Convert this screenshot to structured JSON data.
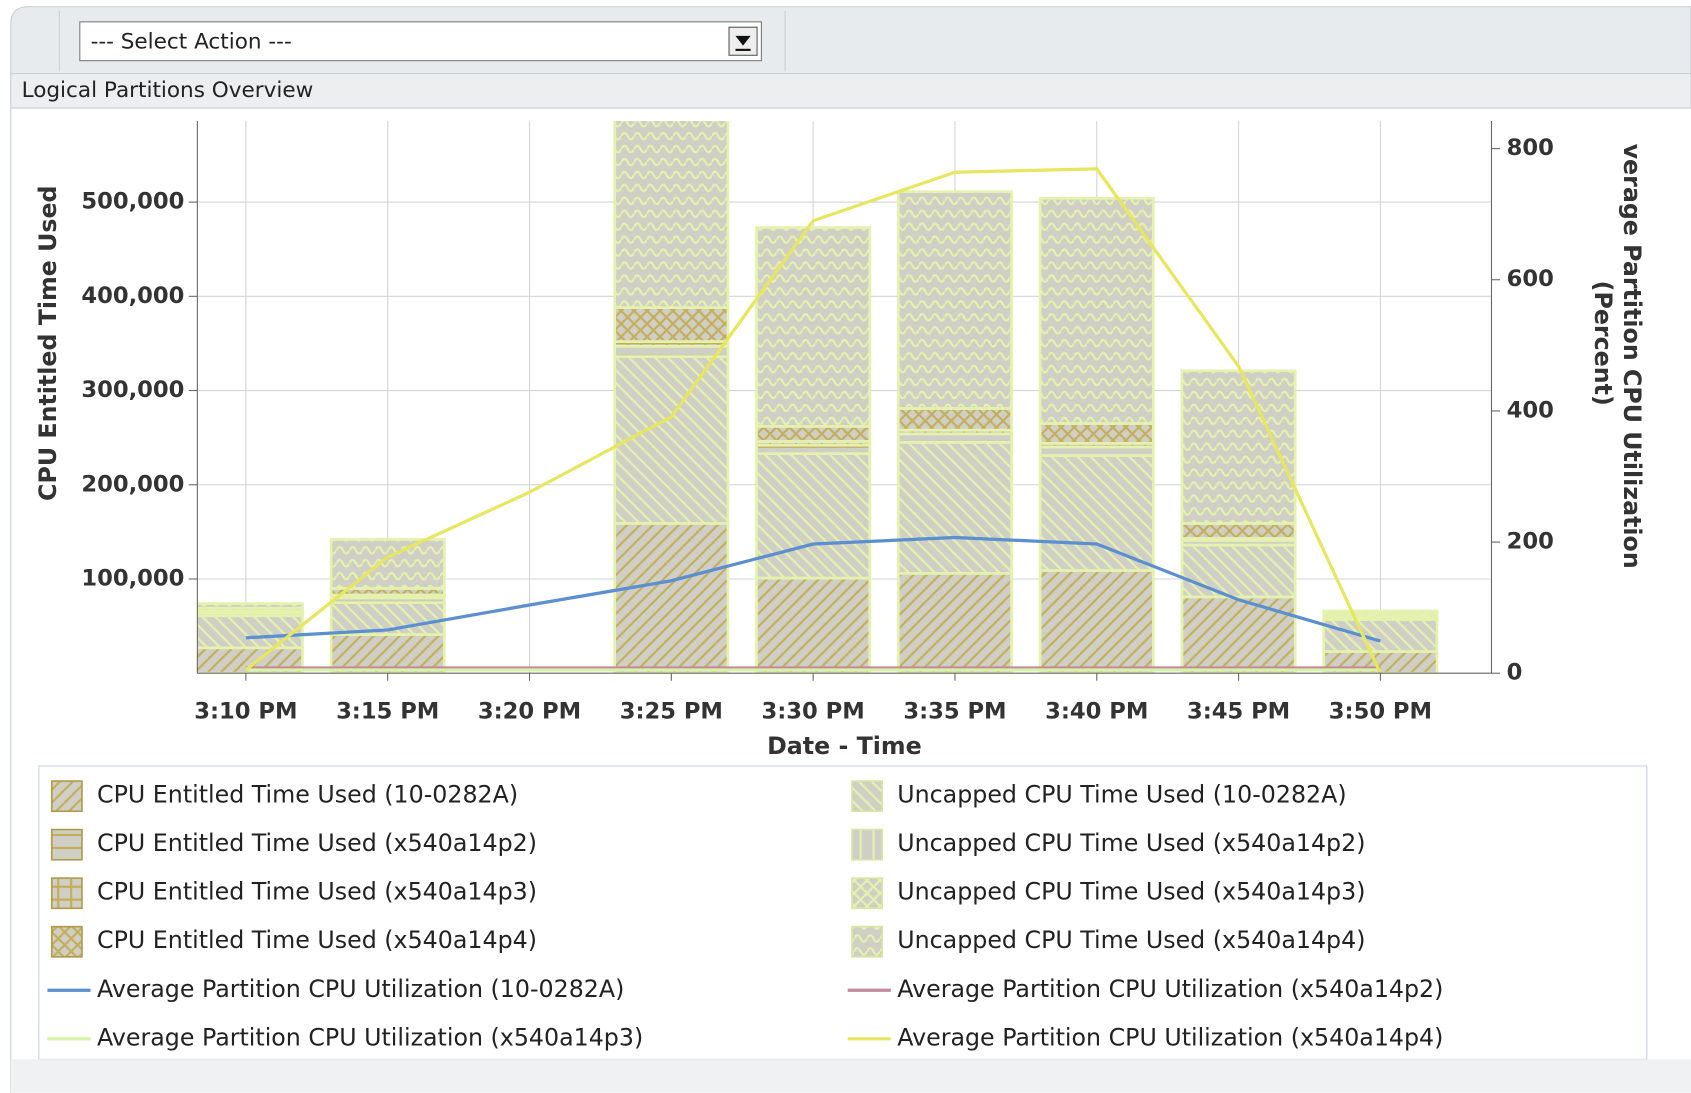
{
  "toolbar": {
    "select": "--- Select Action ---"
  },
  "panel_title": "Logical Partitions Overview",
  "chart_data": {
    "type": "bar",
    "stacked": true,
    "ylabel": "CPU Entitled Time Used",
    "y2label": [
      "verage Partition CPU Utilization",
      "(Percent)"
    ],
    "xlabel": "Date - Time",
    "categories": [
      "3:10 PM",
      "3:15 PM",
      "3:20 PM",
      "3:25 PM",
      "3:30 PM",
      "3:35 PM",
      "3:40 PM",
      "3:45 PM",
      "3:50 PM"
    ],
    "ylim": [
      0,
      586000
    ],
    "yticks": [
      {
        "value": 100000,
        "label": "100,000"
      },
      {
        "value": 200000,
        "label": "200,000"
      },
      {
        "value": 300000,
        "label": "300,000"
      },
      {
        "value": 400000,
        "label": "400,000"
      },
      {
        "value": 500000,
        "label": "500,000"
      }
    ],
    "y2lim": [
      0,
      842
    ],
    "y2ticks": [
      0,
      200,
      400,
      600,
      800
    ],
    "grid": true,
    "series": [
      {
        "name": "CPU Entitled Time Used (10-0282A)",
        "type": "bar",
        "color": "#c4ae5a",
        "pattern": "diag",
        "values": [
          27000,
          41000,
          null,
          159000,
          101000,
          106000,
          109000,
          81000,
          23000
        ]
      },
      {
        "name": "Uncapped CPU Time Used (10-0282A)",
        "type": "bar",
        "color": "#e4f2ae",
        "pattern": "back",
        "values": [
          34000,
          34000,
          null,
          177000,
          132000,
          139000,
          122000,
          55000,
          34000
        ]
      },
      {
        "name": "CPU Entitled Time Used (x540a14p2)",
        "type": "bar",
        "color": "#c4ae5a",
        "pattern": "hline",
        "values": [
          3000,
          5000,
          null,
          11000,
          9000,
          9000,
          9000,
          5000,
          2000
        ]
      },
      {
        "name": "CPU Entitled Time Used (x540a14p3)",
        "type": "bar",
        "color": "#c4ae5a",
        "pattern": "grid",
        "values": [
          2000,
          3000,
          null,
          5000,
          4000,
          4000,
          4000,
          2000,
          1000
        ]
      },
      {
        "name": "CPU Entitled Time Used (x540a14p4)",
        "type": "bar",
        "color": "#c4ae5a",
        "pattern": "cross",
        "values": [
          3000,
          7000,
          null,
          36000,
          16000,
          23000,
          21000,
          16000,
          3000
        ]
      },
      {
        "name": "Uncapped CPU Time Used (x540a14p2)",
        "type": "bar",
        "color": "#e4f2ae",
        "pattern": "vline",
        "values": [
          0,
          0,
          null,
          0,
          0,
          0,
          0,
          0,
          0
        ]
      },
      {
        "name": "Uncapped CPU Time Used (x540a14p3)",
        "type": "bar",
        "color": "#e4f2ae",
        "pattern": "cross",
        "values": [
          0,
          0,
          null,
          0,
          0,
          0,
          0,
          0,
          0
        ]
      },
      {
        "name": "Uncapped CPU Time Used (x540a14p4)",
        "type": "bar",
        "color": "#e4f2ae",
        "pattern": "wave",
        "values": [
          5000,
          52000,
          null,
          252000,
          211000,
          230000,
          239000,
          162000,
          3000
        ]
      },
      {
        "name": "Average Partition CPU Utilization (10-0282A)",
        "type": "line",
        "axis": "y2",
        "color": "#5b8fd0",
        "values": [
          54,
          66,
          104,
          141,
          197,
          207,
          197,
          112,
          49
        ]
      },
      {
        "name": "Average Partition CPU Utilization (x540a14p2)",
        "type": "line",
        "axis": "y2",
        "color": "#c48a9a",
        "values": [
          8,
          8,
          8,
          8,
          8,
          8,
          8,
          8,
          8
        ]
      },
      {
        "name": "Average Partition CPU Utilization (x540a14p3)",
        "type": "line",
        "axis": "y2",
        "color": "#d8f2a8",
        "values": [
          5,
          5,
          5,
          5,
          5,
          5,
          5,
          5,
          5
        ]
      },
      {
        "name": "Average Partition CPU Utilization (x540a14p4)",
        "type": "line",
        "axis": "y2",
        "color": "#e8e660",
        "values": [
          5,
          177,
          276,
          391,
          690,
          764,
          769,
          468,
          0
        ]
      }
    ]
  }
}
